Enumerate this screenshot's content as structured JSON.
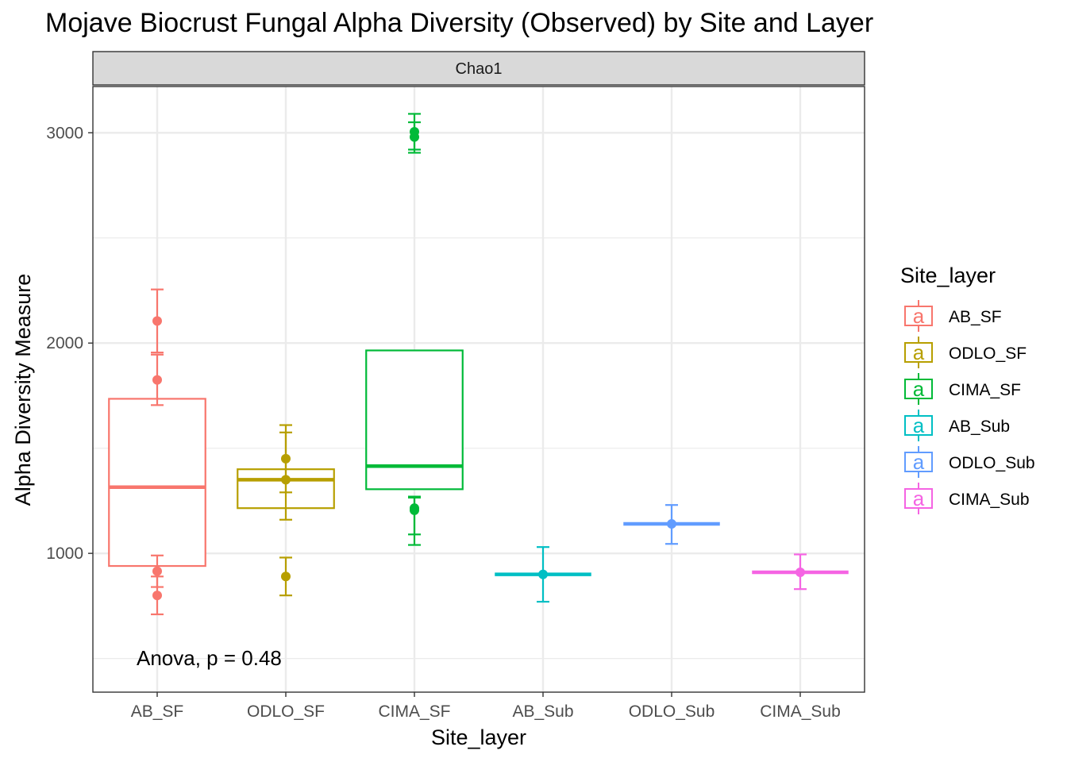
{
  "chart_data": {
    "type": "boxplot",
    "title": "Mojave Biocrust Fungal Alpha Diversity (Observed) by Site and Layer",
    "facet_label": "Chao1",
    "xlabel": "Site_layer",
    "ylabel": "Alpha Diversity Measure",
    "ylim": [
      340,
      3220
    ],
    "yticks": [
      1000,
      2000,
      3000
    ],
    "y_minor_gridlines": [
      500,
      1500,
      2500
    ],
    "grid": true,
    "legend": {
      "title": "Site_layer",
      "placement": "right",
      "key_glyph": "a",
      "entries": [
        "AB_SF",
        "ODLO_SF",
        "CIMA_SF",
        "AB_Sub",
        "ODLO_Sub",
        "CIMA_Sub"
      ]
    },
    "annotation": "Anova, p = 0.48",
    "categories": [
      "AB_SF",
      "ODLO_SF",
      "CIMA_SF",
      "AB_Sub",
      "ODLO_Sub",
      "CIMA_Sub"
    ],
    "colors": [
      "#F8766D",
      "#B79F00",
      "#00BA38",
      "#00BFC4",
      "#619CFF",
      "#F564E3"
    ],
    "boxes": [
      {
        "q1": 940,
        "median": 1315,
        "q3": 1735
      },
      {
        "q1": 1215,
        "median": 1350,
        "q3": 1400
      },
      {
        "q1": 1305,
        "median": 1415,
        "q3": 1965
      },
      {
        "q1": 900,
        "median": 900,
        "q3": 900
      },
      {
        "q1": 1140,
        "median": 1140,
        "q3": 1140
      },
      {
        "q1": 910,
        "median": 910,
        "q3": 910
      }
    ],
    "points": [
      [
        {
          "y": 2105,
          "ymin": 1955,
          "ymax": 2255
        },
        {
          "y": 1825,
          "ymin": 1705,
          "ymax": 1945
        },
        {
          "y": 915,
          "ymin": 840,
          "ymax": 990
        },
        {
          "y": 800,
          "ymin": 710,
          "ymax": 890
        }
      ],
      [
        {
          "y": 1450,
          "ymin": 1290,
          "ymax": 1610
        },
        {
          "y": 1350,
          "ymin": 1160,
          "ymax": 1575
        },
        {
          "y": 890,
          "ymin": 800,
          "ymax": 980
        }
      ],
      [
        {
          "y": 3005,
          "ymin": 2920,
          "ymax": 3090
        },
        {
          "y": 2980,
          "ymin": 2905,
          "ymax": 3050
        },
        {
          "y": 1215,
          "ymin": 1090,
          "ymax": 1270
        },
        {
          "y": 1205,
          "ymin": 1040,
          "ymax": 1265
        }
      ],
      [
        {
          "y": 900,
          "ymin": 770,
          "ymax": 1030
        }
      ],
      [
        {
          "y": 1140,
          "ymin": 1045,
          "ymax": 1230
        }
      ],
      [
        {
          "y": 910,
          "ymin": 830,
          "ymax": 995
        }
      ]
    ]
  }
}
